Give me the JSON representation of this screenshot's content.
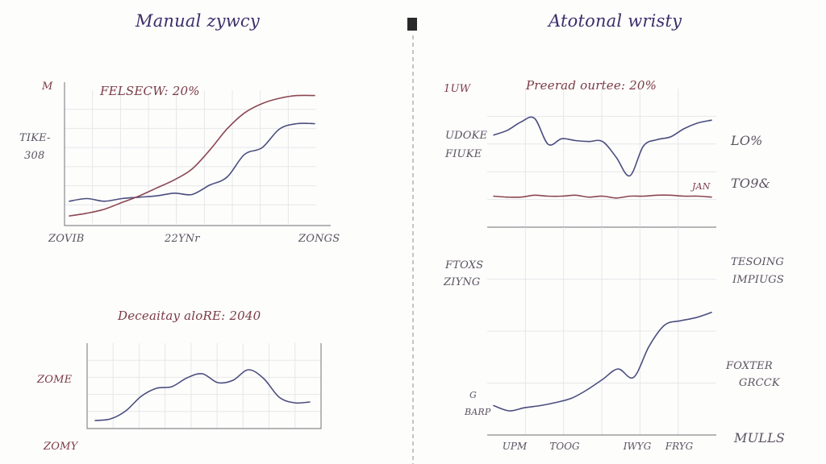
{
  "page": {
    "left_title": "Manual zywcy",
    "right_title": "Atotonal wristy"
  },
  "labels": {
    "tl_corner": "M",
    "tl_y_top": "TIKE-",
    "tl_y_bottom": "308",
    "tl_x_left": "ZOVIB",
    "tl_x_mid": "22YNr",
    "tl_x_right": "ZONGS",
    "bl_y_upper": "ZOME",
    "bl_y_lower": "ZOMY",
    "rt_y_top": "1UW",
    "rt_y_mid_a": "UDOKE",
    "rt_y_mid_b": "FIUKE",
    "rt_right_top": "LO%",
    "rt_right_mid": "TO9&",
    "rt_small_tag": "JAN",
    "rb_y_top_a": "FTOXS",
    "rb_y_top_b": "ZIYNG",
    "rb_right_top_a": "TESOING",
    "rb_right_top_b": "IMPIUGS",
    "rb_right_mid_a": "FOXTER",
    "rb_right_mid_b": "GRCCK",
    "rb_y_bottom_a": "G",
    "rb_y_bottom_b": "BARP",
    "rb_x_1": "UPM",
    "rb_x_2": "TOOG",
    "rb_x_3": "IWYG",
    "rb_x_4": "FRYG",
    "rb_x_right": "MULLS"
  },
  "colors": {
    "navy": "#4a4e7e",
    "maroon": "#8b4752",
    "grid": "#e7e7ea",
    "axis": "#8a8a90",
    "divider": "#8a8a90"
  },
  "chart_data": [
    {
      "type": "line",
      "title": "FELSECW: 20%",
      "x": [
        0,
        1,
        2,
        3,
        4,
        5,
        6,
        7,
        8,
        9,
        10,
        11,
        12,
        13,
        14
      ],
      "ylim": [
        0,
        100
      ],
      "series": [
        {
          "color": "navy",
          "values": [
            17,
            19,
            17,
            19,
            20,
            21,
            23,
            22,
            29,
            35,
            52,
            57,
            71,
            75,
            75
          ]
        },
        {
          "color": "maroon",
          "values": [
            6,
            8,
            11,
            16,
            21,
            27,
            33,
            41,
            55,
            71,
            83,
            90,
            94,
            96,
            96
          ]
        }
      ]
    },
    {
      "type": "line",
      "title": "Deceaitay aloRE: 2040",
      "x": [
        0,
        1,
        2,
        3,
        4,
        5,
        6,
        7,
        8,
        9,
        10,
        11,
        12,
        13,
        14
      ],
      "ylim": [
        0,
        100
      ],
      "series": [
        {
          "color": "navy",
          "values": [
            4,
            6,
            16,
            34,
            44,
            46,
            57,
            62,
            51,
            54,
            67,
            56,
            33,
            26,
            27
          ]
        }
      ]
    },
    {
      "type": "line",
      "title": "Preerad ourtee: 20%",
      "x": [
        0,
        1,
        2,
        3,
        4,
        5,
        6,
        7,
        8,
        9,
        10,
        11,
        12,
        13,
        14,
        15,
        16
      ],
      "ylim": [
        0,
        100
      ],
      "series": [
        {
          "color": "navy",
          "values": [
            76,
            81,
            90,
            94,
            66,
            72,
            70,
            69,
            69,
            52,
            32,
            64,
            71,
            74,
            83,
            89,
            92
          ]
        },
        {
          "color": "maroon",
          "values": [
            10,
            9,
            9,
            11,
            10,
            10,
            11,
            9,
            10,
            8,
            10,
            10,
            11,
            11,
            10,
            10,
            9
          ]
        }
      ]
    },
    {
      "type": "line",
      "title": "",
      "x": [
        0,
        1,
        2,
        3,
        4,
        5,
        6,
        7,
        8,
        9,
        10,
        11,
        12,
        13,
        14
      ],
      "xticks": [
        "UPM",
        "TOOG",
        "IWYG",
        "FRYG"
      ],
      "ylim": [
        0,
        100
      ],
      "series": [
        {
          "color": "navy",
          "values": [
            5,
            0,
            3,
            5,
            8,
            12,
            20,
            30,
            40,
            32,
            62,
            82,
            86,
            89,
            94
          ]
        }
      ]
    }
  ]
}
